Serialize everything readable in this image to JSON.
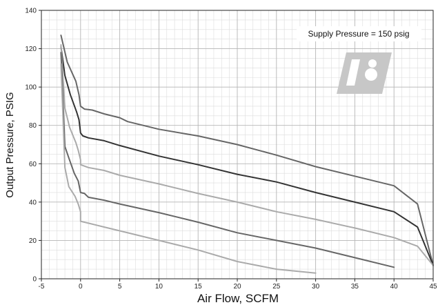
{
  "chart_data": {
    "type": "line",
    "xlabel": "Air Flow, SCFM",
    "ylabel": "Output Pressure, PSIG",
    "annotation": "Supply Pressure = 150 psig",
    "xlim": [
      -5,
      45
    ],
    "ylim": [
      0,
      140
    ],
    "x_ticks": [
      {
        "value": -5,
        "label": "-5"
      },
      {
        "value": 0,
        "label": "0"
      },
      {
        "value": 5,
        "label": "5"
      },
      {
        "value": 10,
        "label": "10"
      },
      {
        "value": 15,
        "label": "15"
      },
      {
        "value": 20,
        "label": "20"
      },
      {
        "value": 25,
        "label": "25"
      },
      {
        "value": 30,
        "label": "30"
      },
      {
        "value": 35,
        "label": "35"
      },
      {
        "value": 40,
        "label": "40"
      },
      {
        "value": 45,
        "label": "45"
      }
    ],
    "y_ticks": [
      {
        "value": 0,
        "label": "0"
      },
      {
        "value": 20,
        "label": "20"
      },
      {
        "value": 40,
        "label": "40"
      },
      {
        "value": 60,
        "label": "60"
      },
      {
        "value": 80,
        "label": "80"
      },
      {
        "value": 100,
        "label": "100"
      },
      {
        "value": 120,
        "label": "120"
      },
      {
        "value": 140,
        "label": "140"
      }
    ],
    "grid": true,
    "series": [
      {
        "color": "#666666",
        "points": [
          [
            -2.5,
            127
          ],
          [
            -1.7,
            113
          ],
          [
            -0.6,
            103
          ],
          [
            -0.2,
            96
          ],
          [
            0,
            90
          ],
          [
            0.5,
            88.5
          ],
          [
            1.5,
            88
          ],
          [
            3,
            86
          ],
          [
            5,
            84
          ],
          [
            6,
            82
          ],
          [
            10,
            78
          ],
          [
            15,
            74.5
          ],
          [
            20,
            70
          ],
          [
            25,
            64.5
          ],
          [
            30,
            58.5
          ],
          [
            35,
            53.5
          ],
          [
            40,
            48.5
          ],
          [
            43,
            39
          ],
          [
            45,
            7
          ]
        ]
      },
      {
        "color": "#333333",
        "points": [
          [
            -2.5,
            121
          ],
          [
            -2,
            106
          ],
          [
            -1.3,
            96
          ],
          [
            -0.5,
            87
          ],
          [
            -0.2,
            83
          ],
          [
            0,
            76
          ],
          [
            0.3,
            74.5
          ],
          [
            1,
            73.5
          ],
          [
            3,
            72
          ],
          [
            5,
            69.5
          ],
          [
            10,
            64
          ],
          [
            15,
            59.5
          ],
          [
            20,
            54.5
          ],
          [
            25,
            50.5
          ],
          [
            30,
            45
          ],
          [
            35,
            40
          ],
          [
            40,
            35
          ],
          [
            43,
            27
          ],
          [
            45,
            7
          ]
        ]
      },
      {
        "color": "#aaaaaa",
        "points": [
          [
            -2.5,
            122
          ],
          [
            -2,
            89
          ],
          [
            -1.4,
            79
          ],
          [
            -0.6,
            71
          ],
          [
            -0.3,
            67
          ],
          [
            0,
            62
          ],
          [
            0,
            59.5
          ],
          [
            1,
            58
          ],
          [
            3,
            56.5
          ],
          [
            5,
            54
          ],
          [
            10,
            49.5
          ],
          [
            15,
            44.5
          ],
          [
            20,
            40
          ],
          [
            25,
            35
          ],
          [
            30,
            31
          ],
          [
            35,
            26.5
          ],
          [
            40,
            21.5
          ],
          [
            43,
            17
          ],
          [
            45,
            7
          ]
        ]
      },
      {
        "color": "#666666",
        "points": [
          [
            -2.5,
            118
          ],
          [
            -2,
            69
          ],
          [
            -1.5,
            63
          ],
          [
            -0.8,
            55
          ],
          [
            -0.3,
            51
          ],
          [
            0,
            45
          ],
          [
            0.5,
            44.5
          ],
          [
            1,
            42.5
          ],
          [
            3,
            41
          ],
          [
            5,
            39
          ],
          [
            10,
            34.5
          ],
          [
            15,
            29.5
          ],
          [
            20,
            24
          ],
          [
            25,
            20
          ],
          [
            30,
            16
          ],
          [
            35,
            11
          ],
          [
            40,
            6
          ]
        ]
      },
      {
        "color": "#aaaaaa",
        "points": [
          [
            -2.5,
            112
          ],
          [
            -2,
            58
          ],
          [
            -1.5,
            48
          ],
          [
            -0.7,
            43
          ],
          [
            -0.3,
            39
          ],
          [
            0,
            35
          ],
          [
            0,
            30
          ],
          [
            1,
            29
          ],
          [
            2,
            28
          ],
          [
            3,
            27
          ],
          [
            5,
            25
          ],
          [
            10,
            20
          ],
          [
            15,
            15
          ],
          [
            20,
            9
          ],
          [
            25,
            5
          ],
          [
            30,
            3
          ]
        ]
      }
    ]
  }
}
